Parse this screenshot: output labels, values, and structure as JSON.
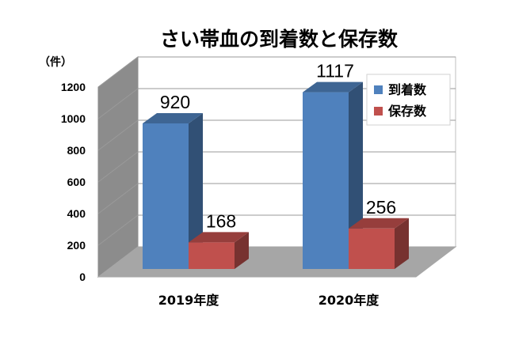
{
  "chart_data": {
    "type": "bar",
    "title": "さい帯血の到着数と保存数",
    "unit_label": "（件）",
    "categories": [
      "2019年度",
      "2020年度"
    ],
    "series": [
      {
        "name": "到着数",
        "values": [
          920,
          1117
        ],
        "color": "#4F81BD"
      },
      {
        "name": "保存数",
        "values": [
          168,
          256
        ],
        "color": "#C0504D"
      }
    ],
    "ylim": [
      0,
      1200
    ],
    "yticks": [
      "0",
      "200",
      "400",
      "600",
      "800",
      "1000",
      "1200"
    ],
    "grid": true,
    "legend_position": "top-right",
    "style": "3d-column"
  }
}
